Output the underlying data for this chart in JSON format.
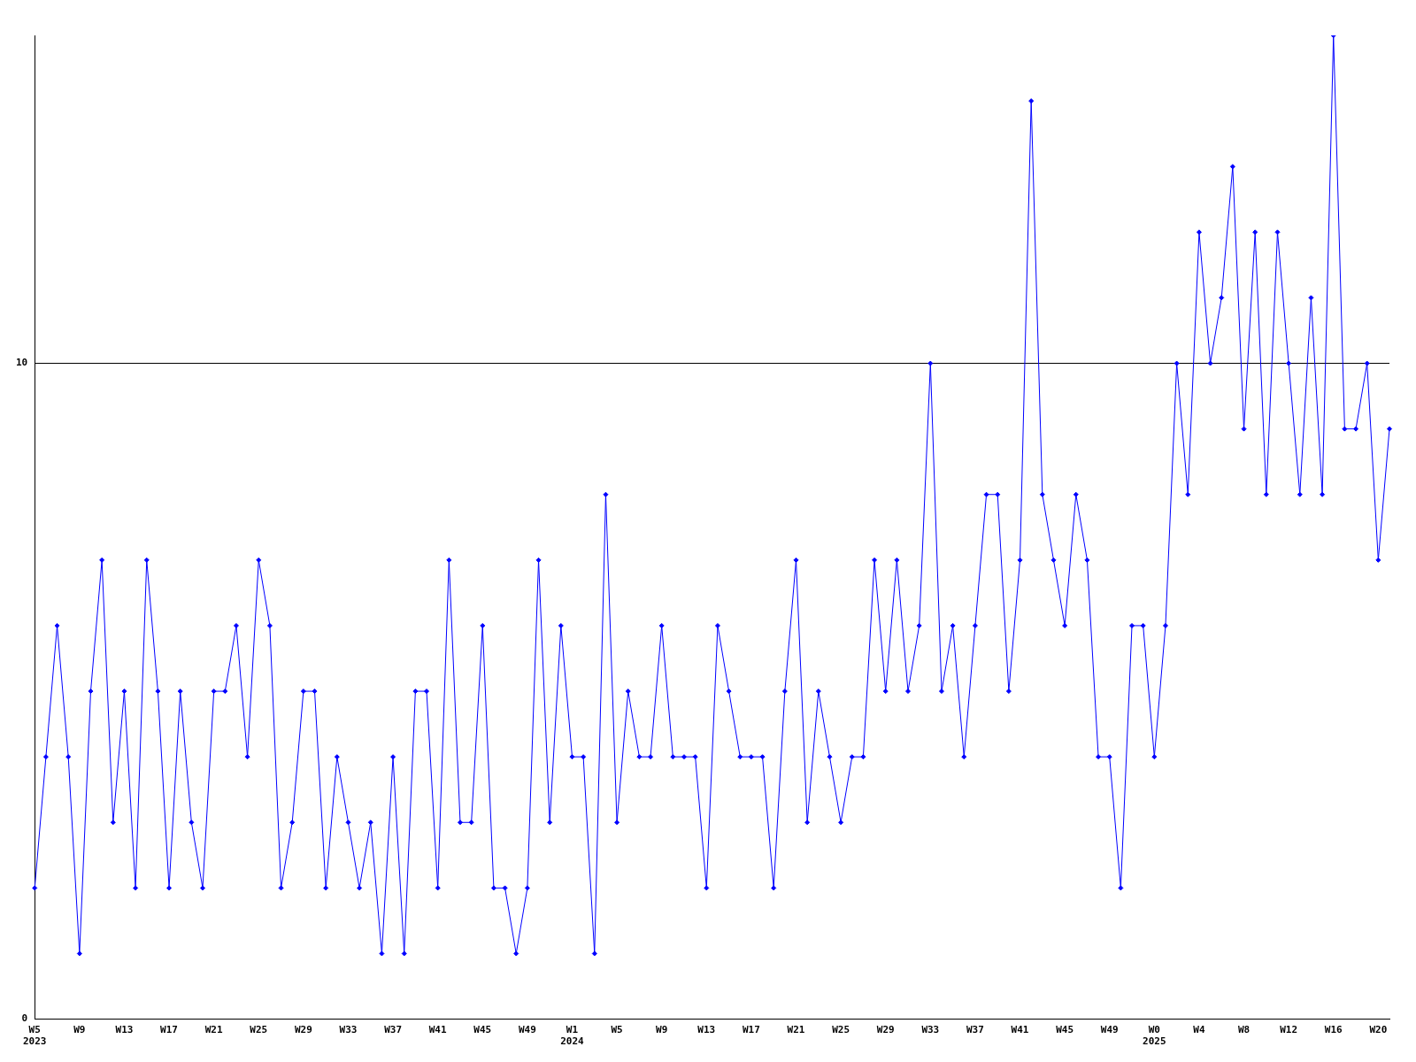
{
  "chart_data": {
    "type": "line",
    "categories": [
      "W5\n2023",
      null,
      null,
      null,
      "W9",
      null,
      null,
      null,
      "W13",
      null,
      null,
      null,
      "W17",
      null,
      null,
      null,
      "W21",
      null,
      null,
      null,
      "W25",
      null,
      null,
      null,
      "W29",
      null,
      null,
      null,
      "W33",
      null,
      null,
      null,
      "W37",
      null,
      null,
      null,
      "W41",
      null,
      null,
      null,
      "W45",
      null,
      null,
      null,
      "W49",
      null,
      null,
      null,
      "W1\n2024",
      null,
      null,
      null,
      "W5",
      null,
      null,
      null,
      "W9",
      null,
      null,
      null,
      "W13",
      null,
      null,
      null,
      "W17",
      null,
      null,
      null,
      "W21",
      null,
      null,
      null,
      "W25",
      null,
      null,
      null,
      "W29",
      null,
      null,
      null,
      "W33",
      null,
      null,
      null,
      "W37",
      null,
      null,
      null,
      "W41",
      null,
      null,
      null,
      "W45",
      null,
      null,
      null,
      "W49",
      null,
      null,
      null,
      "W0\n2025",
      null,
      null,
      null,
      "W4",
      null,
      null,
      null,
      "W8",
      null,
      null,
      null,
      "W12",
      null,
      null,
      null,
      "W16",
      null,
      null,
      null,
      "W20",
      null
    ],
    "series": [
      {
        "color": "#0000ff",
        "values": [
          2,
          4,
          6,
          4,
          1,
          5,
          7,
          3,
          5,
          2,
          7,
          5,
          2,
          5,
          3,
          2,
          5,
          5,
          6,
          4,
          7,
          6,
          2,
          3,
          5,
          5,
          2,
          4,
          3,
          2,
          3,
          1,
          4,
          1,
          5,
          5,
          2,
          7,
          3,
          3,
          6,
          2,
          2,
          1,
          2,
          7,
          3,
          6,
          4,
          4,
          1,
          8,
          3,
          5,
          4,
          4,
          6,
          4,
          4,
          4,
          2,
          6,
          5,
          4,
          4,
          4,
          2,
          5,
          7,
          3,
          5,
          4,
          3,
          4,
          4,
          7,
          5,
          7,
          5,
          6,
          10,
          5,
          6,
          4,
          6,
          8,
          8,
          5,
          7,
          14,
          8,
          7,
          6,
          8,
          7,
          4,
          4,
          2,
          6,
          6,
          4,
          6,
          10,
          8,
          12,
          10,
          11,
          13,
          9,
          12,
          8,
          12,
          10,
          8,
          11,
          8,
          15,
          9,
          9,
          10,
          7,
          9
        ]
      }
    ],
    "ylim": [
      0,
      15
    ],
    "yticks": [
      0,
      10
    ],
    "grid": "y",
    "marker": "diamond",
    "line_style": "solid",
    "legend": false
  }
}
